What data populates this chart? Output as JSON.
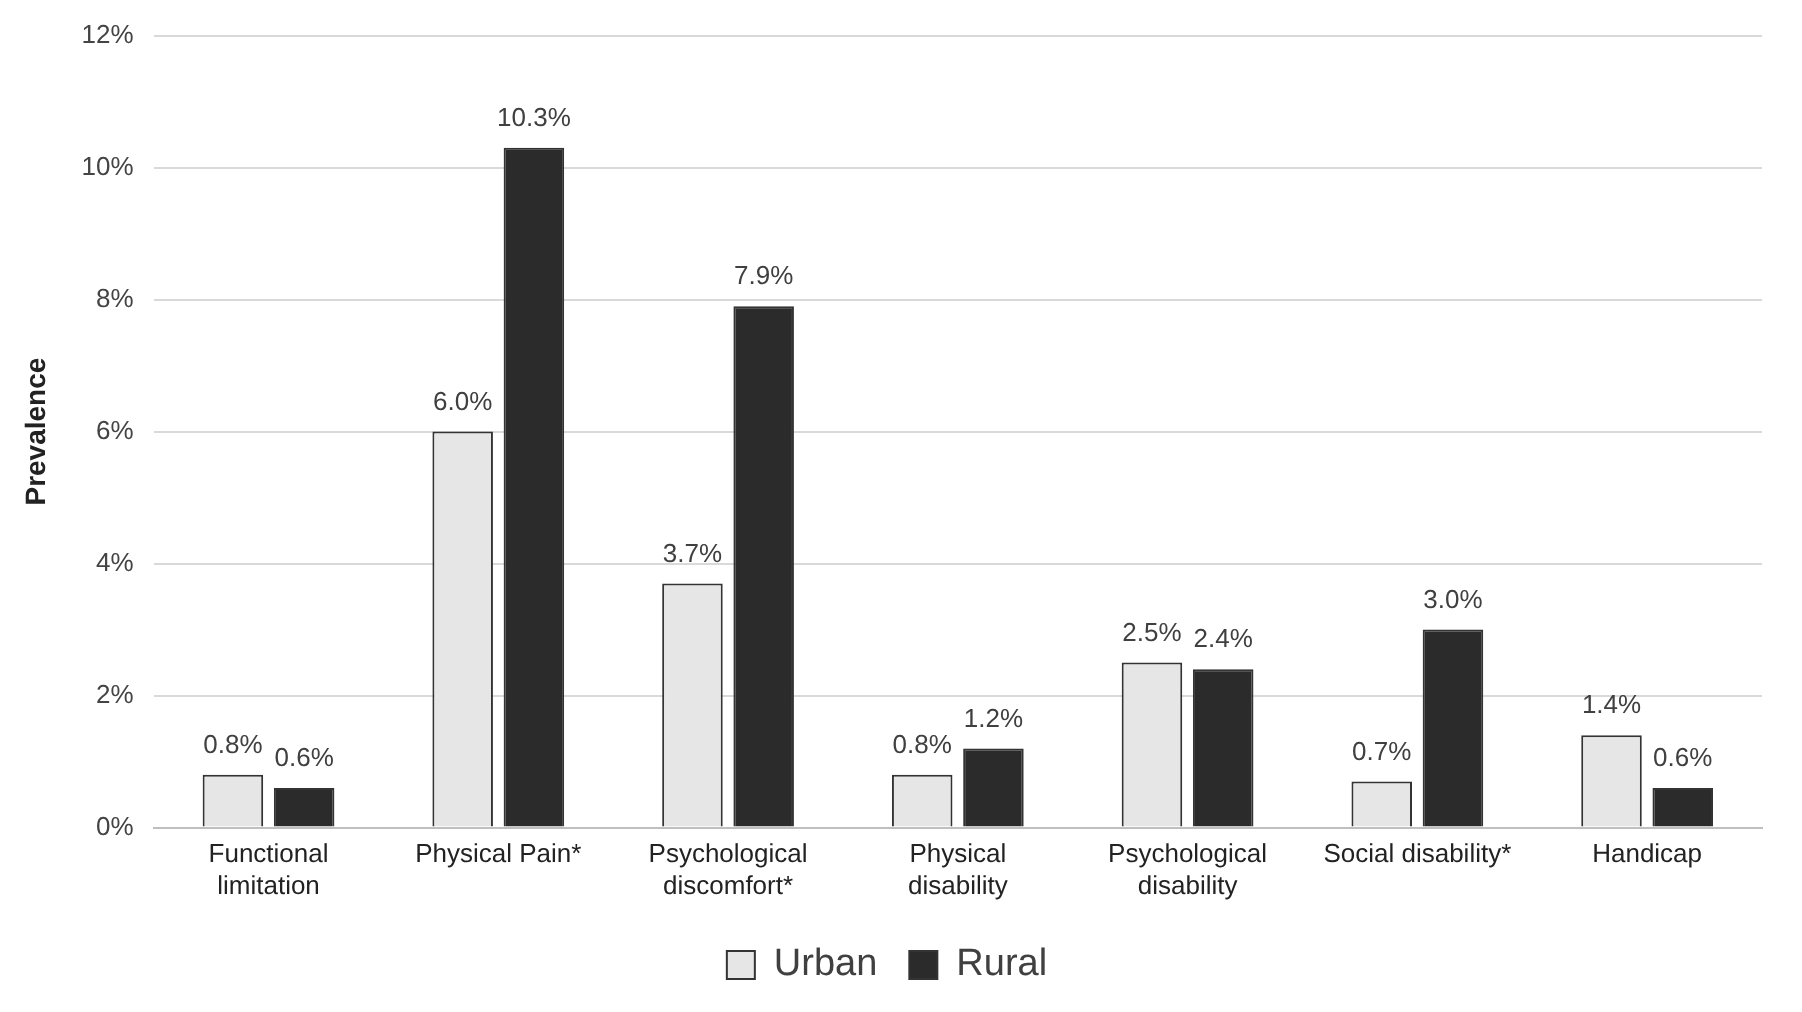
{
  "chart_data": {
    "type": "bar",
    "ylabel": "Prevalence",
    "categories": [
      "Functional limitation",
      "Physical Pain*",
      "Psychological discomfort*",
      "Physical disability",
      "Psychological disability",
      "Social disability*",
      "Handicap"
    ],
    "series": [
      {
        "name": "Urban",
        "color": "#e6e6e6",
        "values": [
          0.8,
          6.0,
          3.7,
          0.8,
          2.5,
          0.7,
          1.4
        ],
        "value_labels": [
          "0.8%",
          "6.0%",
          "3.7%",
          "0.8%",
          "2.5%",
          "0.7%",
          "1.4%"
        ]
      },
      {
        "name": "Rural",
        "color": "#2b2b2b",
        "values": [
          0.6,
          10.3,
          7.9,
          1.2,
          2.4,
          3.0,
          0.6
        ],
        "value_labels": [
          "0.6%",
          "10.3%",
          "7.9%",
          "1.2%",
          "2.4%",
          "3.0%",
          "0.6%"
        ]
      }
    ],
    "ylim": [
      0,
      12
    ],
    "yticks": [
      {
        "value": 0,
        "label": "0%"
      },
      {
        "value": 2,
        "label": "2%"
      },
      {
        "value": 4,
        "label": "4%"
      },
      {
        "value": 6,
        "label": "6%"
      },
      {
        "value": 8,
        "label": "8%"
      },
      {
        "value": 10,
        "label": "10%"
      },
      {
        "value": 12,
        "label": "12%"
      }
    ],
    "grid": "y",
    "legend": "bottom"
  }
}
